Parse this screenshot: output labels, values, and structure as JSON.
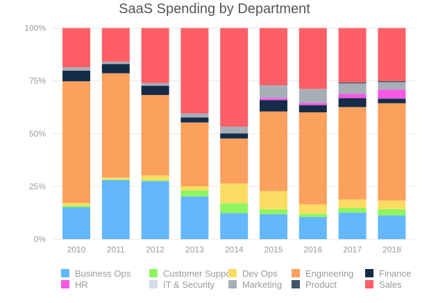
{
  "chart_data": {
    "type": "bar",
    "stacked": true,
    "title": "SaaS Spending by Department",
    "xlabel": "",
    "ylabel": "",
    "ylim": [
      0,
      100
    ],
    "y_ticks": [
      "0%",
      "25%",
      "50%",
      "75%",
      "100%"
    ],
    "y_tick_values": [
      0,
      25,
      50,
      75,
      100
    ],
    "grid": true,
    "legend_position": "bottom",
    "categories": [
      "2010",
      "2011",
      "2012",
      "2013",
      "2014",
      "2015",
      "2016",
      "2017",
      "2018"
    ],
    "series": [
      {
        "name": "Business Ops",
        "color": "#63b8fb",
        "values": [
          15.1,
          28.0,
          27.5,
          20.3,
          12.4,
          11.9,
          10.6,
          12.6,
          11.3
        ]
      },
      {
        "name": "Customer Support",
        "color": "#8ff55f",
        "values": [
          0.8,
          0.3,
          0.5,
          2.8,
          4.6,
          2.3,
          1.5,
          2.2,
          2.9
        ]
      },
      {
        "name": "Dev Ops",
        "color": "#fbdc62",
        "values": [
          1.3,
          1.0,
          2.3,
          2.0,
          9.4,
          8.6,
          4.4,
          4.0,
          4.1
        ]
      },
      {
        "name": "Engineering",
        "color": "#fca05e",
        "values": [
          57.6,
          49.3,
          38.0,
          30.2,
          21.3,
          37.7,
          43.6,
          43.8,
          46.1
        ]
      },
      {
        "name": "Finance",
        "color": "#142c47",
        "values": [
          5.0,
          4.4,
          4.4,
          2.4,
          2.4,
          5.4,
          3.4,
          4.2,
          2.2
        ]
      },
      {
        "name": "HR",
        "color": "#f659e6",
        "values": [
          0,
          0,
          0,
          0,
          0,
          1.0,
          1.1,
          2.0,
          4.2
        ]
      },
      {
        "name": "IT & Security",
        "color": "#d3dce4",
        "values": [
          0,
          0,
          0,
          0,
          0,
          0,
          0,
          0,
          0
        ]
      },
      {
        "name": "Marketing",
        "color": "#a8aeb8",
        "values": [
          1.6,
          1.1,
          1.3,
          1.9,
          3.2,
          6.0,
          6.6,
          5.0,
          3.6
        ]
      },
      {
        "name": "Product",
        "color": "#3f5468",
        "values": [
          0,
          0,
          0,
          0,
          0,
          0,
          0,
          0.5,
          0.5
        ]
      },
      {
        "name": "Sales",
        "color": "#fe5f67",
        "values": [
          18.6,
          15.9,
          26.0,
          40.4,
          46.7,
          27.1,
          28.8,
          25.7,
          25.1
        ]
      }
    ]
  }
}
